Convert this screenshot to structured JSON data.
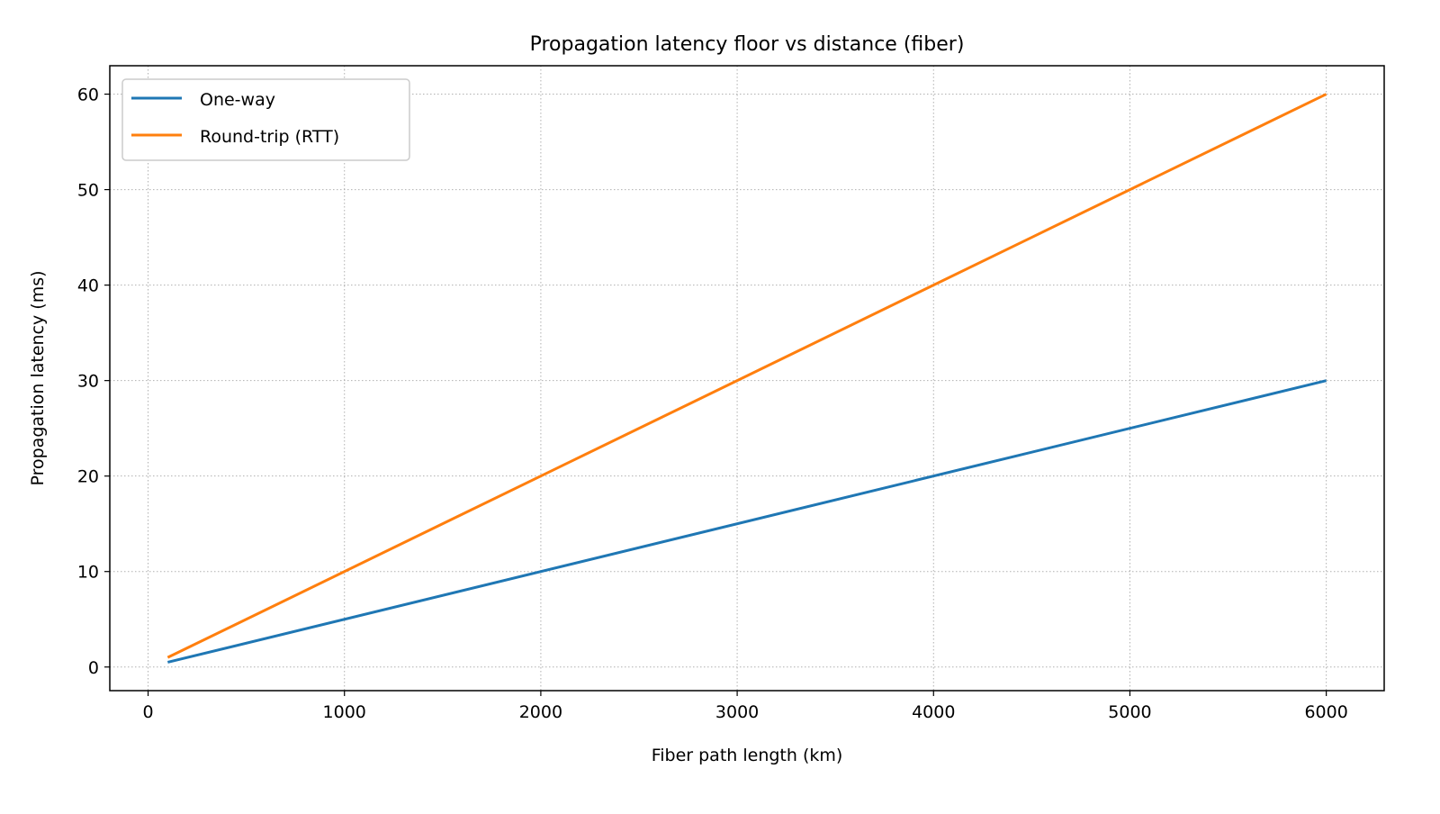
{
  "chart_data": {
    "type": "line",
    "title": "Propagation latency floor vs distance (fiber)",
    "xlabel": "Fiber path length (km)",
    "ylabel": "Propagation latency (ms)",
    "xlim": [
      -195,
      6295
    ],
    "ylim": [
      -2.475,
      62.975
    ],
    "xticks": [
      0,
      1000,
      2000,
      3000,
      4000,
      5000,
      6000
    ],
    "yticks": [
      0,
      10,
      20,
      30,
      40,
      50,
      60
    ],
    "grid": true,
    "legend_position": "top-left",
    "series": [
      {
        "name": "One-way",
        "color": "#1f77b4",
        "x": [
          100,
          6000
        ],
        "y": [
          0.5,
          30
        ]
      },
      {
        "name": "Round-trip (RTT)",
        "color": "#ff7f0e",
        "x": [
          100,
          6000
        ],
        "y": [
          1,
          60
        ]
      }
    ]
  }
}
